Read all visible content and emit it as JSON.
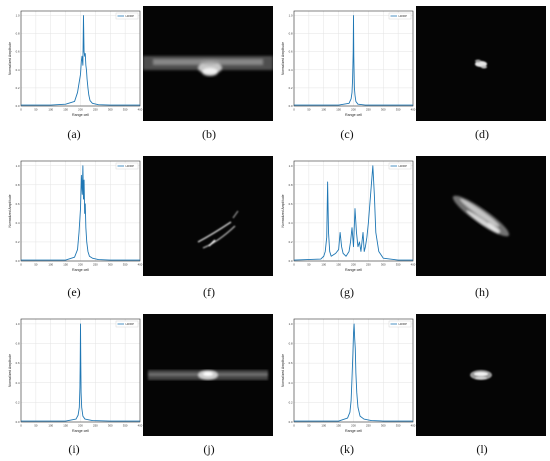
{
  "labels": [
    "(a)",
    "(b)",
    "(c)",
    "(d)",
    "(e)",
    "(f)",
    "(g)",
    "(h)",
    "(i)",
    "(j)",
    "(k)",
    "(l)"
  ],
  "chart_data": [
    {
      "type": "line",
      "panel": "(a)",
      "xlabel": "Range cell",
      "ylabel": "Normalized Amplitude",
      "legend": "HRRP",
      "legend_position": "top-right",
      "grid": true,
      "xlim": [
        0,
        400
      ],
      "ylim": [
        0,
        1.05
      ],
      "x_ticks": [
        0,
        50,
        100,
        150,
        200,
        250,
        300,
        350,
        400
      ],
      "y_ticks": [
        0.0,
        0.2,
        0.4,
        0.6,
        0.8,
        1.0
      ],
      "series": [
        {
          "name": "HRRP",
          "x": [
            0,
            100,
            150,
            180,
            190,
            195,
            200,
            203,
            205,
            208,
            210,
            212,
            214,
            216,
            218,
            220,
            222,
            225,
            228,
            232,
            240,
            260,
            300,
            350,
            400
          ],
          "y": [
            0.01,
            0.01,
            0.02,
            0.05,
            0.15,
            0.25,
            0.35,
            0.5,
            0.55,
            0.45,
            1.0,
            0.6,
            0.55,
            0.58,
            0.45,
            0.4,
            0.3,
            0.2,
            0.12,
            0.06,
            0.03,
            0.015,
            0.01,
            0.01,
            0.01
          ]
        }
      ]
    },
    {
      "type": "line",
      "panel": "(c)",
      "xlabel": "Range cell",
      "ylabel": "Normalized Amplitude",
      "legend": "HRRP",
      "legend_position": "top-right",
      "grid": true,
      "xlim": [
        0,
        400
      ],
      "ylim": [
        0,
        1.05
      ],
      "x_ticks": [
        0,
        50,
        100,
        150,
        200,
        250,
        300,
        350,
        400
      ],
      "y_ticks": [
        0.0,
        0.2,
        0.4,
        0.6,
        0.8,
        1.0
      ],
      "series": [
        {
          "name": "HRRP",
          "x": [
            0,
            150,
            185,
            192,
            195,
            197,
            199,
            200,
            201,
            203,
            205,
            208,
            215,
            240,
            300,
            400
          ],
          "y": [
            0.01,
            0.01,
            0.03,
            0.08,
            0.15,
            0.3,
            0.6,
            1.0,
            0.55,
            0.2,
            0.12,
            0.05,
            0.02,
            0.01,
            0.01,
            0.01
          ]
        }
      ]
    },
    {
      "type": "line",
      "panel": "(e)",
      "xlabel": "Range cell",
      "ylabel": "Normalized Amplitude",
      "legend": "HRRP",
      "legend_position": "top-right",
      "grid": true,
      "xlim": [
        0,
        400
      ],
      "ylim": [
        0,
        1.05
      ],
      "x_ticks": [
        0,
        50,
        100,
        150,
        200,
        250,
        300,
        350,
        400
      ],
      "y_ticks": [
        0.0,
        0.2,
        0.4,
        0.6,
        0.8,
        1.0
      ],
      "series": [
        {
          "name": "HRRP",
          "x": [
            0,
            150,
            180,
            190,
            195,
            200,
            203,
            206,
            208,
            210,
            212,
            214,
            216,
            218,
            221,
            225,
            230,
            240,
            260,
            300,
            400
          ],
          "y": [
            0.01,
            0.01,
            0.04,
            0.12,
            0.3,
            0.55,
            0.9,
            0.7,
            1.0,
            0.65,
            0.85,
            0.5,
            0.6,
            0.35,
            0.2,
            0.1,
            0.05,
            0.03,
            0.015,
            0.01,
            0.01
          ]
        }
      ]
    },
    {
      "type": "line",
      "panel": "(g)",
      "xlabel": "Range cell",
      "ylabel": "Normalized Amplitude",
      "legend": "HRRP",
      "legend_position": "top-right",
      "grid": true,
      "xlim": [
        0,
        400
      ],
      "ylim": [
        0,
        1.05
      ],
      "x_ticks": [
        0,
        50,
        100,
        150,
        200,
        250,
        300,
        350,
        400
      ],
      "y_ticks": [
        0.0,
        0.2,
        0.4,
        0.6,
        0.8,
        1.0
      ],
      "series": [
        {
          "name": "HRRP",
          "x": [
            0,
            90,
            100,
            105,
            110,
            113,
            116,
            120,
            125,
            140,
            150,
            155,
            160,
            165,
            175,
            185,
            190,
            195,
            200,
            205,
            210,
            215,
            220,
            225,
            232,
            236,
            240,
            245,
            250,
            255,
            260,
            265,
            270,
            275,
            285,
            300,
            350,
            400
          ],
          "y": [
            0.01,
            0.02,
            0.05,
            0.1,
            0.25,
            0.83,
            0.3,
            0.1,
            0.05,
            0.08,
            0.12,
            0.3,
            0.15,
            0.08,
            0.05,
            0.1,
            0.2,
            0.35,
            0.15,
            0.55,
            0.3,
            0.15,
            0.2,
            0.1,
            0.3,
            0.1,
            0.15,
            0.25,
            0.4,
            0.6,
            0.8,
            1.0,
            0.7,
            0.3,
            0.1,
            0.03,
            0.01,
            0.01
          ]
        }
      ]
    },
    {
      "type": "line",
      "panel": "(i)",
      "xlabel": "Range cell",
      "ylabel": "Normalized Amplitude",
      "legend": "HRRP",
      "legend_position": "top-right",
      "grid": true,
      "xlim": [
        0,
        400
      ],
      "ylim": [
        0,
        1.05
      ],
      "x_ticks": [
        0,
        50,
        100,
        150,
        200,
        250,
        300,
        350,
        400
      ],
      "y_ticks": [
        0.0,
        0.2,
        0.4,
        0.6,
        0.8,
        1.0
      ],
      "series": [
        {
          "name": "HRRP",
          "x": [
            0,
            150,
            185,
            192,
            196,
            198,
            199,
            200,
            201,
            202,
            204,
            208,
            215,
            240,
            300,
            400
          ],
          "y": [
            0.01,
            0.01,
            0.03,
            0.07,
            0.15,
            0.35,
            0.6,
            1.0,
            0.6,
            0.3,
            0.15,
            0.06,
            0.03,
            0.015,
            0.01,
            0.01
          ]
        }
      ]
    },
    {
      "type": "line",
      "panel": "(k)",
      "xlabel": "Range cell",
      "ylabel": "Normalized Amplitude",
      "legend": "HRRP",
      "legend_position": "top-right",
      "grid": true,
      "xlim": [
        0,
        400
      ],
      "ylim": [
        0,
        1.05
      ],
      "x_ticks": [
        0,
        50,
        100,
        150,
        200,
        250,
        300,
        350,
        400
      ],
      "y_ticks": [
        0.0,
        0.2,
        0.4,
        0.6,
        0.8,
        1.0
      ],
      "series": [
        {
          "name": "HRRP",
          "x": [
            0,
            150,
            180,
            188,
            192,
            195,
            198,
            200,
            202,
            204,
            206,
            208,
            211,
            215,
            222,
            235,
            260,
            300,
            400
          ],
          "y": [
            0.01,
            0.01,
            0.04,
            0.1,
            0.22,
            0.45,
            0.7,
            0.9,
            1.0,
            0.85,
            0.75,
            0.5,
            0.3,
            0.15,
            0.06,
            0.03,
            0.015,
            0.01,
            0.01
          ]
        }
      ]
    }
  ]
}
